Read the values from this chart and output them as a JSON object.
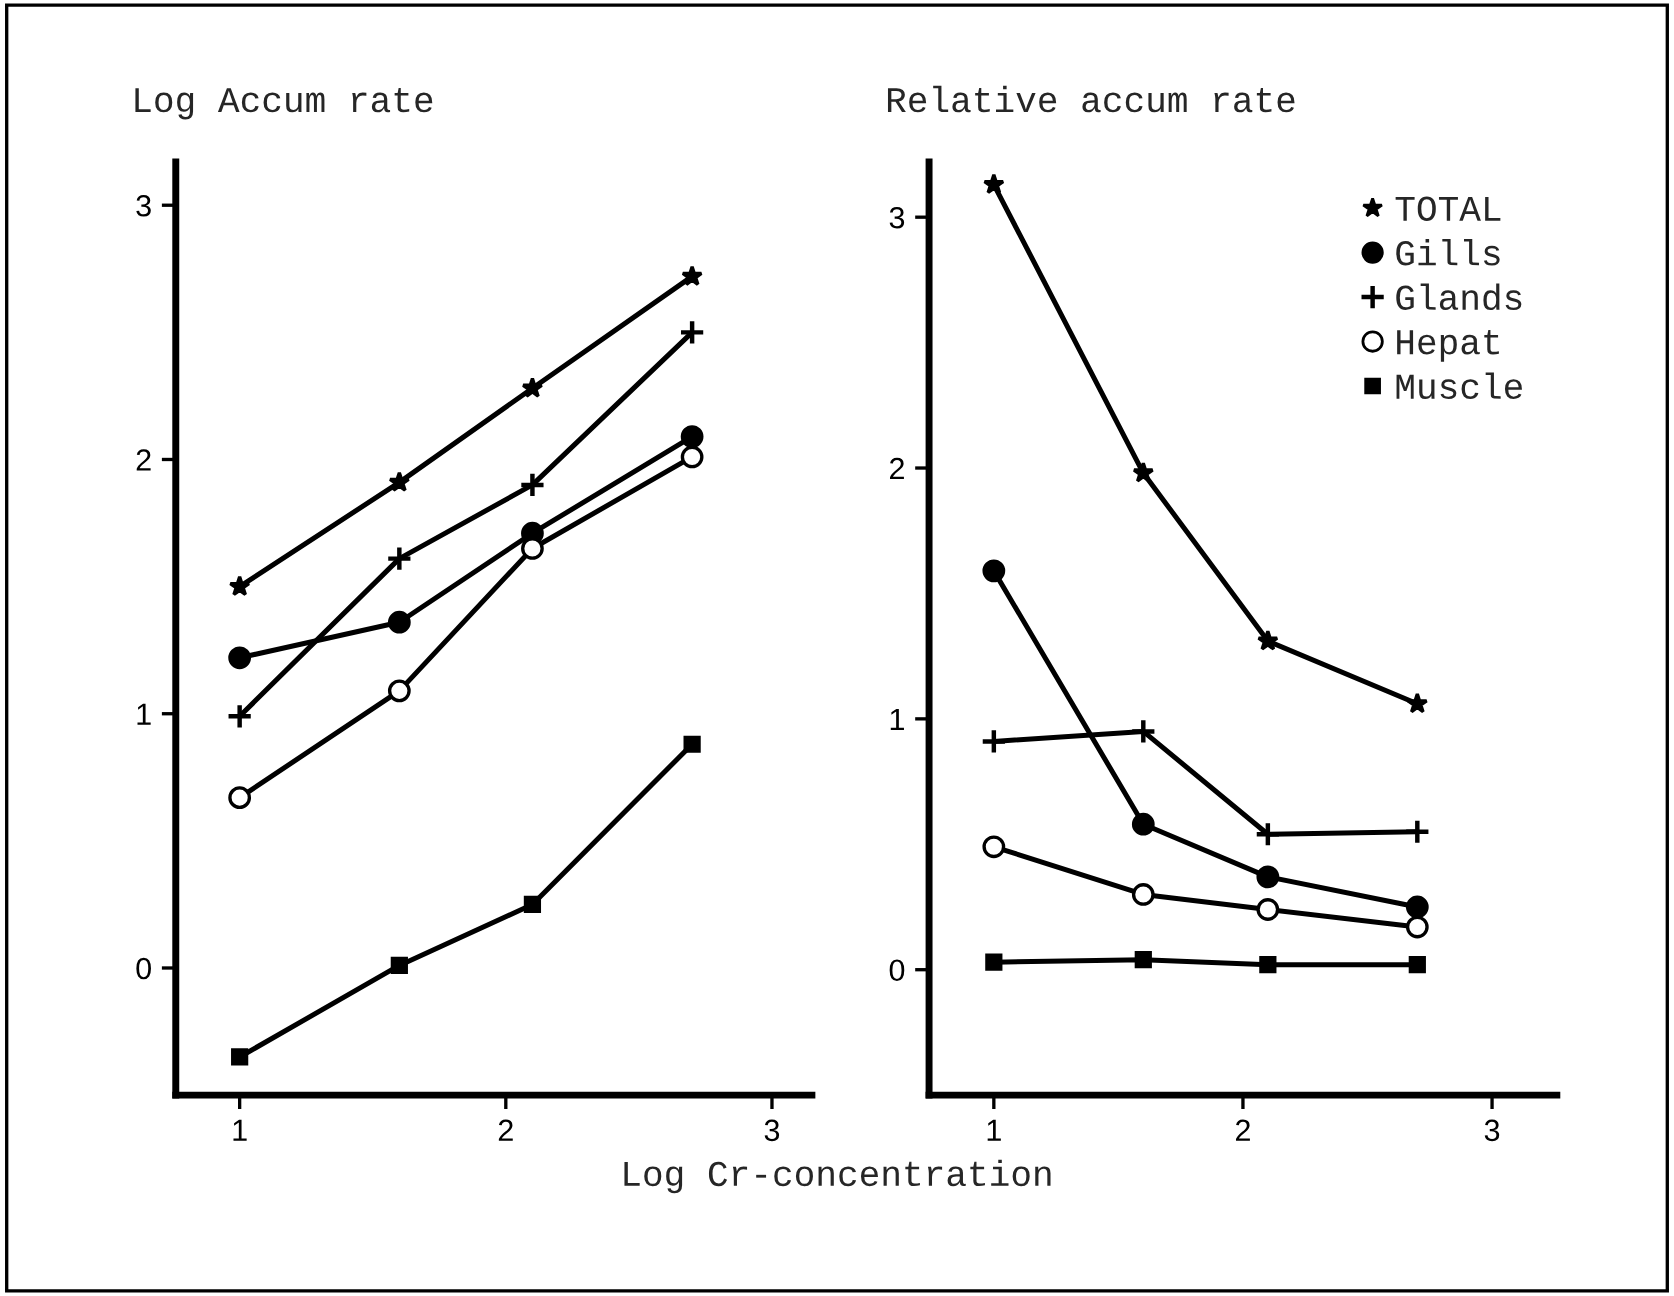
{
  "chart_data": [
    {
      "type": "line",
      "title": "Log Accum rate",
      "xlabel": "Log Cr-concentration",
      "x": [
        1,
        1.6,
        2.1,
        2.7
      ],
      "xlim": [
        0.76,
        3.15
      ],
      "xticks": [
        1,
        2,
        3
      ],
      "ylim": [
        -0.5,
        3.17
      ],
      "yticks": [
        0,
        1,
        2,
        3
      ],
      "grid": false,
      "legend": false,
      "series": [
        {
          "marker": "star",
          "color": "#000000",
          "values": [
            1.5,
            1.91,
            2.28,
            2.72
          ]
        },
        {
          "marker": "circle",
          "color": "#000000",
          "values": [
            1.22,
            1.36,
            1.71,
            2.09
          ]
        },
        {
          "marker": "cross",
          "color": "#000000",
          "values": [
            0.99,
            1.61,
            1.9,
            2.5
          ]
        },
        {
          "marker": "circle",
          "color": "#ffffff",
          "values": [
            0.67,
            1.09,
            1.65,
            2.01
          ]
        },
        {
          "marker": "square",
          "color": "#000000",
          "values": [
            -0.35,
            0.01,
            0.25,
            0.88
          ]
        }
      ]
    },
    {
      "type": "line",
      "title": "Relative accum rate",
      "x": [
        1,
        1.6,
        2.1,
        2.7
      ],
      "xlim": [
        0.74,
        3.26
      ],
      "xticks": [
        1,
        2,
        3
      ],
      "ylim": [
        -0.5,
        3.22
      ],
      "yticks": [
        0,
        1,
        2,
        3
      ],
      "grid": false,
      "legend": "top right",
      "series": [
        {
          "name": "TOTAL",
          "marker": "star",
          "color": "#000000",
          "values": [
            3.13,
            1.98,
            1.31,
            1.06
          ]
        },
        {
          "name": "Gills",
          "marker": "circle",
          "color": "#000000",
          "values": [
            1.59,
            0.58,
            0.37,
            0.25
          ]
        },
        {
          "name": "Glands",
          "marker": "cross",
          "color": "#000000",
          "values": [
            0.91,
            0.95,
            0.54,
            0.55
          ]
        },
        {
          "name": "Hepat",
          "marker": "circle",
          "color": "#ffffff",
          "values": [
            0.49,
            0.3,
            0.24,
            0.17
          ]
        },
        {
          "name": "Muscle",
          "marker": "square",
          "color": "#000000",
          "values": [
            0.03,
            0.04,
            0.02,
            0.02
          ]
        }
      ]
    }
  ]
}
